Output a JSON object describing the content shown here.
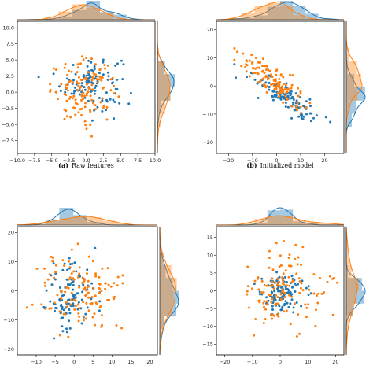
{
  "colors": {
    "blue": "#1f77b4",
    "orange": "#ff7f0e"
  },
  "chart_data": [
    {
      "id": "a",
      "type": "scatter",
      "caption_label": "(a)",
      "caption_text": "Raw features",
      "xlim": [
        -10,
        10
      ],
      "ylim": [
        -9.5,
        11
      ],
      "xticks": [
        -10,
        -7.5,
        -5,
        -2.5,
        0,
        2.5,
        5,
        7.5,
        10
      ],
      "xtick_labels": [
        "−10.0",
        "−7.5",
        "−5.0",
        "−2.5",
        "0.0",
        "2.5",
        "5.0",
        "7.5",
        "10.0"
      ],
      "yticks": [
        -7.5,
        -5,
        -2.5,
        0,
        2.5,
        5,
        7.5,
        10
      ],
      "ytick_labels": [
        "−7.5",
        "−5.0",
        "−2.5",
        "0.0",
        "2.5",
        "5.0",
        "7.5",
        "10.0"
      ],
      "marginals": "histogram + kde, top and right",
      "series": [
        {
          "color": "blue",
          "cx": 0.8,
          "cy": 1.6,
          "sx": 2.2,
          "sy": 2.1,
          "n": 110
        },
        {
          "color": "orange",
          "cx": -0.3,
          "cy": 0.2,
          "sx": 2.4,
          "sy": 2.3,
          "n": 130
        }
      ]
    },
    {
      "id": "b",
      "type": "scatter",
      "caption_label": "(b)",
      "caption_text": "Initialized model",
      "xlim": [
        -25,
        28
      ],
      "ylim": [
        -24,
        23
      ],
      "xticks": [
        -20,
        -10,
        0,
        10,
        20
      ],
      "xtick_labels": [
        "−20",
        "−10",
        "0",
        "10",
        "20"
      ],
      "yticks": [
        -20,
        -10,
        0,
        10,
        20
      ],
      "ytick_labels": [
        "−20",
        "−10",
        "0",
        "10",
        "20"
      ],
      "marginals": "histogram + kde, top and right",
      "series": [
        {
          "color": "blue",
          "cx": 4,
          "cy": -4,
          "sx": 6.5,
          "sy": 4.5,
          "corr": -0.85,
          "n": 110
        },
        {
          "color": "orange",
          "cx": -2,
          "cy": 2,
          "sx": 7,
          "sy": 5,
          "corr": -0.85,
          "n": 130
        }
      ]
    },
    {
      "id": "c",
      "type": "scatter",
      "caption_label": "",
      "caption_text": "",
      "xlim": [
        -15,
        22
      ],
      "ylim": [
        -22,
        22
      ],
      "xticks": [
        -10,
        -5,
        0,
        5,
        10,
        15,
        20
      ],
      "xtick_labels": [
        "−10",
        "−5",
        "0",
        "5",
        "10",
        "15",
        "20"
      ],
      "yticks": [
        -20,
        -10,
        0,
        10,
        20
      ],
      "ytick_labels": [
        "−20",
        "−10",
        "0",
        "10",
        "20"
      ],
      "marginals": "histogram + kde, top and right",
      "series": [
        {
          "color": "blue",
          "cx": -1,
          "cy": -2,
          "sx": 3.5,
          "sy": 6.5,
          "n": 110
        },
        {
          "color": "orange",
          "cx": 2,
          "cy": -1,
          "sx": 5.5,
          "sy": 6.5,
          "n": 130
        }
      ]
    },
    {
      "id": "d",
      "type": "scatter",
      "caption_label": "",
      "caption_text": "",
      "xlim": [
        -23,
        23
      ],
      "ylim": [
        -18,
        18
      ],
      "xticks": [
        -20,
        -10,
        0,
        10,
        20
      ],
      "xtick_labels": [
        "−20",
        "−10",
        "0",
        "10",
        "20"
      ],
      "yticks": [
        -15,
        -10,
        -5,
        0,
        5,
        10,
        15
      ],
      "ytick_labels": [
        "−15",
        "−10",
        "−5",
        "0",
        "5",
        "10",
        "15"
      ],
      "marginals": "histogram + kde, top and right",
      "series": [
        {
          "color": "blue",
          "cx": 0,
          "cy": -1,
          "sx": 4,
          "sy": 3,
          "n": 110
        },
        {
          "color": "orange",
          "cx": 2,
          "cy": 0,
          "sx": 7,
          "sy": 5.5,
          "n": 130
        }
      ]
    }
  ]
}
